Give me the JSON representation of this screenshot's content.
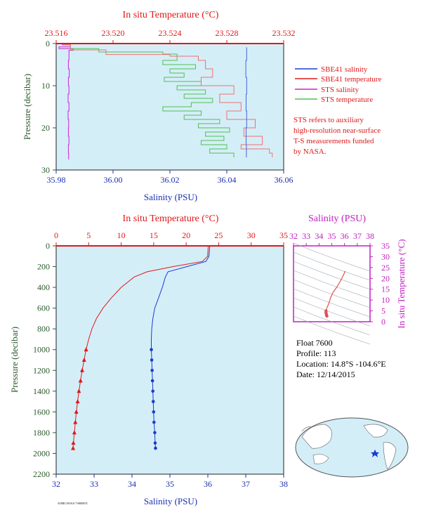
{
  "chart_data": [
    {
      "type": "line",
      "title": "",
      "top_axis_label": "In situ Temperature (°C)",
      "top_ticks": [
        "23.516",
        "23.520",
        "23.524",
        "23.528",
        "23.532"
      ],
      "top_range": [
        23.516,
        23.532
      ],
      "xlabel": "Salinity (PSU)",
      "x_ticks": [
        "35.98",
        "36.00",
        "36.02",
        "36.04",
        "36.06"
      ],
      "xlim": [
        35.98,
        36.06
      ],
      "ylabel": "Pressure (decibar)",
      "y_ticks": [
        "0",
        "10",
        "20",
        "30"
      ],
      "ylim": [
        0,
        30
      ],
      "grid": false,
      "legend_position": "right",
      "legend": [
        {
          "label": "SBE41 salinity",
          "color": "#1a3ccf"
        },
        {
          "label": "SBE41 temperature",
          "color": "#e01818"
        },
        {
          "label": "STS salinity",
          "color": "#d020d0"
        },
        {
          "label": "STS temperature",
          "color": "#50c050"
        }
      ],
      "note": [
        "STS refers to auxiliary",
        "high-resolution near-surface",
        "T-S measurements funded",
        "by NASA."
      ],
      "series": [
        {
          "name": "STS salinity",
          "axis": "salinity",
          "color": "#d020d0",
          "values": [
            {
              "p": 0.3,
              "v": 35.982
            },
            {
              "p": 0.8,
              "v": 35.985
            },
            {
              "p": 1.2,
              "v": 35.981
            },
            {
              "p": 1.6,
              "v": 35.986
            },
            {
              "p": 2.0,
              "v": 35.9845
            },
            {
              "p": 4,
              "v": 35.9845
            },
            {
              "p": 6,
              "v": 35.9843
            },
            {
              "p": 8,
              "v": 35.9846
            },
            {
              "p": 10,
              "v": 35.9843
            },
            {
              "p": 12,
              "v": 35.9845
            },
            {
              "p": 14,
              "v": 35.9842
            },
            {
              "p": 16,
              "v": 35.9845
            },
            {
              "p": 18,
              "v": 35.9842
            },
            {
              "p": 20,
              "v": 35.9844
            },
            {
              "p": 22,
              "v": 35.9843
            },
            {
              "p": 24,
              "v": 35.9845
            },
            {
              "p": 26,
              "v": 35.9843
            },
            {
              "p": 27.5,
              "v": 35.9844
            }
          ]
        },
        {
          "name": "STS temperature",
          "axis": "temperature",
          "color": "#50c050",
          "values": [
            {
              "p": 0.3,
              "v": 23.5165
            },
            {
              "p": 1.2,
              "v": 23.517
            },
            {
              "p": 2.0,
              "v": 23.519
            },
            {
              "p": 2.5,
              "v": 23.5235
            },
            {
              "p": 4,
              "v": 23.5245
            },
            {
              "p": 5,
              "v": 23.5235
            },
            {
              "p": 6,
              "v": 23.5258
            },
            {
              "p": 7,
              "v": 23.524
            },
            {
              "p": 8,
              "v": 23.525
            },
            {
              "p": 9,
              "v": 23.5236
            },
            {
              "p": 10,
              "v": 23.5262
            },
            {
              "p": 11,
              "v": 23.5245
            },
            {
              "p": 12,
              "v": 23.5265
            },
            {
              "p": 13,
              "v": 23.525
            },
            {
              "p": 14,
              "v": 23.527
            },
            {
              "p": 15,
              "v": 23.5255
            },
            {
              "p": 16,
              "v": 23.5235
            },
            {
              "p": 17,
              "v": 23.5262
            },
            {
              "p": 18,
              "v": 23.525
            },
            {
              "p": 19,
              "v": 23.5275
            },
            {
              "p": 20,
              "v": 23.526
            },
            {
              "p": 21,
              "v": 23.5282
            },
            {
              "p": 22,
              "v": 23.5265
            },
            {
              "p": 23,
              "v": 23.5278
            },
            {
              "p": 24,
              "v": 23.5262
            },
            {
              "p": 25,
              "v": 23.528
            },
            {
              "p": 26,
              "v": 23.5268
            },
            {
              "p": 27,
              "v": 23.5285
            }
          ]
        },
        {
          "name": "SBE41 temperature",
          "axis": "temperature",
          "color": "#f07070",
          "values": [
            {
              "p": 0.3,
              "v": 23.5165
            },
            {
              "p": 1.5,
              "v": 23.517
            },
            {
              "p": 2.6,
              "v": 23.5195
            },
            {
              "p": 3.0,
              "v": 23.524
            },
            {
              "p": 4,
              "v": 23.526
            },
            {
              "p": 6,
              "v": 23.5265
            },
            {
              "p": 8,
              "v": 23.527
            },
            {
              "p": 10,
              "v": 23.5262
            },
            {
              "p": 12,
              "v": 23.5285
            },
            {
              "p": 14,
              "v": 23.5275
            },
            {
              "p": 16,
              "v": 23.529
            },
            {
              "p": 18,
              "v": 23.528
            },
            {
              "p": 20,
              "v": 23.53
            },
            {
              "p": 22,
              "v": 23.5292
            },
            {
              "p": 24,
              "v": 23.5305
            },
            {
              "p": 25,
              "v": 23.529
            },
            {
              "p": 26,
              "v": 23.531
            },
            {
              "p": 27,
              "v": 23.5312
            }
          ]
        },
        {
          "name": "SBE41 salinity",
          "axis": "salinity",
          "color": "#4466dd",
          "values": [
            {
              "p": 1.0,
              "v": 36.0468
            },
            {
              "p": 4,
              "v": 36.047
            },
            {
              "p": 8,
              "v": 36.0467
            },
            {
              "p": 12,
              "v": 36.047
            },
            {
              "p": 16,
              "v": 36.0468
            },
            {
              "p": 20,
              "v": 36.047
            },
            {
              "p": 24,
              "v": 36.0468
            },
            {
              "p": 27,
              "v": 36.0469
            }
          ]
        }
      ]
    },
    {
      "type": "line",
      "title": "",
      "top_axis_label": "In situ Temperature (°C)",
      "top_ticks": [
        "0",
        "5",
        "10",
        "15",
        "20",
        "25",
        "30",
        "35"
      ],
      "top_range": [
        0,
        35
      ],
      "xlabel": "Salinity (PSU)",
      "x_ticks": [
        "32",
        "33",
        "34",
        "35",
        "36",
        "37",
        "38"
      ],
      "xlim": [
        32,
        38
      ],
      "ylabel": "Pressure (decibar)",
      "y_ticks": [
        "0",
        "200",
        "400",
        "600",
        "800",
        "1000",
        "1200",
        "1400",
        "1600",
        "1800",
        "2000",
        "2200"
      ],
      "ylim": [
        0,
        2200
      ],
      "grid": false,
      "series": [
        {
          "name": "Temperature",
          "axis": "temperature",
          "color": "#e01818",
          "values": [
            {
              "p": 0,
              "v": 23.4
            },
            {
              "p": 100,
              "v": 23.3
            },
            {
              "p": 150,
              "v": 22.5
            },
            {
              "p": 200,
              "v": 18.0
            },
            {
              "p": 250,
              "v": 14.0
            },
            {
              "p": 300,
              "v": 12.0
            },
            {
              "p": 400,
              "v": 10.0
            },
            {
              "p": 500,
              "v": 8.5
            },
            {
              "p": 600,
              "v": 7.2
            },
            {
              "p": 700,
              "v": 6.2
            },
            {
              "p": 800,
              "v": 5.5
            },
            {
              "p": 900,
              "v": 5.0
            },
            {
              "p": 1000,
              "v": 4.6
            },
            {
              "p": 1100,
              "v": 4.3
            },
            {
              "p": 1200,
              "v": 4.0
            },
            {
              "p": 1300,
              "v": 3.75
            },
            {
              "p": 1400,
              "v": 3.5
            },
            {
              "p": 1500,
              "v": 3.3
            },
            {
              "p": 1600,
              "v": 3.1
            },
            {
              "p": 1700,
              "v": 2.95
            },
            {
              "p": 1800,
              "v": 2.8
            },
            {
              "p": 1900,
              "v": 2.65
            },
            {
              "p": 1950,
              "v": 2.6
            }
          ]
        },
        {
          "name": "Salinity",
          "axis": "salinity",
          "color": "#1a3ccf",
          "values": [
            {
              "p": 0,
              "v": 36.05
            },
            {
              "p": 100,
              "v": 36.03
            },
            {
              "p": 150,
              "v": 35.95
            },
            {
              "p": 200,
              "v": 35.45
            },
            {
              "p": 250,
              "v": 34.95
            },
            {
              "p": 300,
              "v": 34.88
            },
            {
              "p": 400,
              "v": 34.8
            },
            {
              "p": 500,
              "v": 34.7
            },
            {
              "p": 600,
              "v": 34.6
            },
            {
              "p": 700,
              "v": 34.55
            },
            {
              "p": 800,
              "v": 34.52
            },
            {
              "p": 900,
              "v": 34.51
            },
            {
              "p": 1000,
              "v": 34.51
            },
            {
              "p": 1100,
              "v": 34.52
            },
            {
              "p": 1200,
              "v": 34.53
            },
            {
              "p": 1300,
              "v": 34.54
            },
            {
              "p": 1400,
              "v": 34.55
            },
            {
              "p": 1500,
              "v": 34.56
            },
            {
              "p": 1600,
              "v": 34.57
            },
            {
              "p": 1700,
              "v": 34.58
            },
            {
              "p": 1800,
              "v": 34.6
            },
            {
              "p": 1900,
              "v": 34.61
            },
            {
              "p": 1950,
              "v": 34.62
            }
          ]
        }
      ]
    },
    {
      "type": "scatter",
      "title": "",
      "top_axis_label": "Salinity (PSU)",
      "top_ticks": [
        "32",
        "33",
        "34",
        "35",
        "36",
        "37",
        "38"
      ],
      "top_range": [
        32,
        38
      ],
      "ylabel": "In situ Temperature (°C)",
      "y_ticks": [
        "0",
        "5",
        "10",
        "15",
        "20",
        "25",
        "30",
        "35"
      ],
      "ylim": [
        0,
        35
      ],
      "grid": false,
      "series": [
        {
          "name": "T-S",
          "color": "#e05050",
          "values": [
            {
              "s": 36.05,
              "t": 23.4
            },
            {
              "s": 35.95,
              "t": 22.0
            },
            {
              "s": 35.7,
              "t": 19.0
            },
            {
              "s": 35.4,
              "t": 16.0
            },
            {
              "s": 35.1,
              "t": 13.5
            },
            {
              "s": 34.9,
              "t": 11.0
            },
            {
              "s": 34.8,
              "t": 9.0
            },
            {
              "s": 34.7,
              "t": 7.5
            },
            {
              "s": 34.6,
              "t": 6.2
            },
            {
              "s": 34.55,
              "t": 5.0
            },
            {
              "s": 34.55,
              "t": 4.2
            },
            {
              "s": 34.57,
              "t": 3.5
            },
            {
              "s": 34.6,
              "t": 2.8
            },
            {
              "s": 34.62,
              "t": 2.6
            }
          ]
        }
      ]
    }
  ],
  "info": {
    "float": "Float  7600",
    "profile": "Profile:  113",
    "location": "Location:  14.8°S  -104.6°E",
    "date": "Date:  12/14/2015"
  },
  "footer_tag": "AOML/NOAA  7-6800074",
  "colors": {
    "plot_bg": "#d4eef8",
    "red_axis": "#e01818",
    "blue_axis": "#1a2fb0",
    "green_axis": "#2a5a2a",
    "magenta_axis": "#c020c0"
  }
}
